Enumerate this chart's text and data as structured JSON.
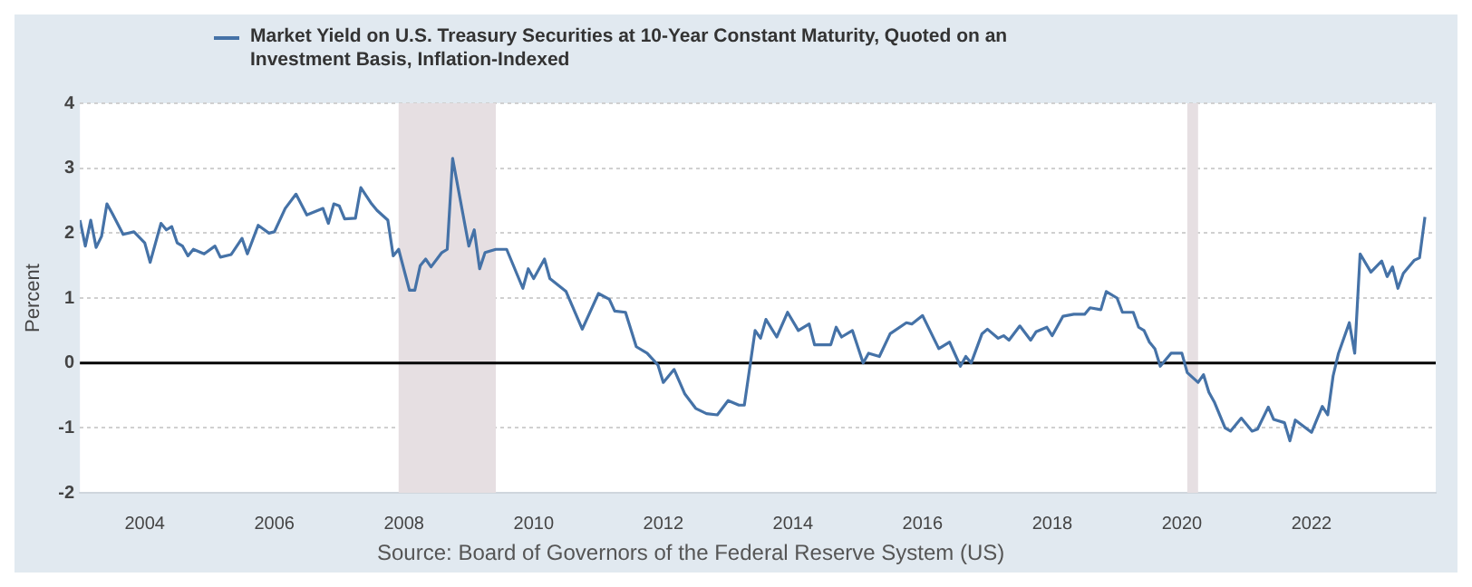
{
  "chart_data": {
    "type": "line",
    "ylabel": "Percent",
    "series": [
      {
        "name": "Market Yield on U.S. Treasury Securities at 10-Year Constant Maturity, Quoted on an Investment Basis, Inflation-Indexed",
        "color": "#4572a7",
        "x": [
          "2003-01",
          "2003-02",
          "2003-03",
          "2003-04",
          "2003-05",
          "2003-06",
          "2003-07",
          "2003-09",
          "2003-11",
          "2004-01",
          "2004-02",
          "2004-04",
          "2004-05",
          "2004-06",
          "2004-07",
          "2004-08",
          "2004-09",
          "2004-10",
          "2004-12",
          "2005-02",
          "2005-03",
          "2005-05",
          "2005-07",
          "2005-08",
          "2005-10",
          "2005-12",
          "2006-01",
          "2006-03",
          "2006-05",
          "2006-07",
          "2006-10",
          "2006-11",
          "2006-12",
          "2007-01",
          "2007-02",
          "2007-04",
          "2007-05",
          "2007-07",
          "2007-08",
          "2007-10",
          "2007-11",
          "2007-12",
          "2008-02",
          "2008-03",
          "2008-04",
          "2008-05",
          "2008-06",
          "2008-08",
          "2008-09",
          "2008-10",
          "2009-01",
          "2009-02",
          "2009-03",
          "2009-04",
          "2009-06",
          "2009-08",
          "2009-11",
          "2009-12",
          "2010-01",
          "2010-03",
          "2010-04",
          "2010-07",
          "2010-10",
          "2011-01",
          "2011-03",
          "2011-04",
          "2011-06",
          "2011-08",
          "2011-10",
          "2011-12",
          "2012-01",
          "2012-03",
          "2012-05",
          "2012-07",
          "2012-09",
          "2012-11",
          "2013-01",
          "2013-03",
          "2013-04",
          "2013-06",
          "2013-07",
          "2013-08",
          "2013-10",
          "2013-12",
          "2014-02",
          "2014-04",
          "2014-05",
          "2014-08",
          "2014-09",
          "2014-10",
          "2014-12",
          "2015-02",
          "2015-03",
          "2015-05",
          "2015-07",
          "2015-10",
          "2015-11",
          "2016-01",
          "2016-04",
          "2016-06",
          "2016-08",
          "2016-09",
          "2016-10",
          "2016-12",
          "2017-01",
          "2017-03",
          "2017-04",
          "2017-05",
          "2017-07",
          "2017-09",
          "2017-10",
          "2017-12",
          "2018-01",
          "2018-03",
          "2018-05",
          "2018-07",
          "2018-08",
          "2018-10",
          "2018-11",
          "2019-01",
          "2019-02",
          "2019-04",
          "2019-05",
          "2019-06",
          "2019-07",
          "2019-08",
          "2019-09",
          "2019-11",
          "2020-01",
          "2020-02",
          "2020-04",
          "2020-05",
          "2020-06",
          "2020-07",
          "2020-09",
          "2020-10",
          "2020-12",
          "2021-02",
          "2021-03",
          "2021-05",
          "2021-06",
          "2021-08",
          "2021-09",
          "2021-10",
          "2022-01",
          "2022-03",
          "2022-04",
          "2022-05",
          "2022-06",
          "2022-08",
          "2022-09",
          "2022-10",
          "2022-12",
          "2023-02",
          "2023-03",
          "2023-04",
          "2023-05",
          "2023-06",
          "2023-08",
          "2023-09",
          "2023-10"
        ],
        "values": [
          2.2,
          1.8,
          2.2,
          1.78,
          1.95,
          2.45,
          2.3,
          1.98,
          2.02,
          1.85,
          1.55,
          2.15,
          2.05,
          2.1,
          1.85,
          1.8,
          1.65,
          1.75,
          1.68,
          1.8,
          1.63,
          1.67,
          1.92,
          1.68,
          2.12,
          2.0,
          2.02,
          2.38,
          2.6,
          2.28,
          2.38,
          2.15,
          2.45,
          2.42,
          2.22,
          2.23,
          2.7,
          2.45,
          2.35,
          2.2,
          1.65,
          1.75,
          1.12,
          1.12,
          1.5,
          1.6,
          1.48,
          1.7,
          1.75,
          3.15,
          1.8,
          2.05,
          1.45,
          1.7,
          1.75,
          1.75,
          1.15,
          1.45,
          1.3,
          1.6,
          1.3,
          1.1,
          0.52,
          1.07,
          0.98,
          0.8,
          0.78,
          0.25,
          0.15,
          -0.03,
          -0.3,
          -0.1,
          -0.48,
          -0.7,
          -0.78,
          -0.8,
          -0.58,
          -0.65,
          -0.65,
          0.5,
          0.38,
          0.67,
          0.4,
          0.78,
          0.5,
          0.6,
          0.28,
          0.28,
          0.55,
          0.4,
          0.5,
          0.0,
          0.15,
          0.1,
          0.45,
          0.62,
          0.6,
          0.73,
          0.22,
          0.32,
          -0.05,
          0.1,
          0.0,
          0.45,
          0.52,
          0.38,
          0.42,
          0.35,
          0.57,
          0.35,
          0.48,
          0.55,
          0.42,
          0.72,
          0.75,
          0.75,
          0.85,
          0.82,
          1.1,
          1.0,
          0.78,
          0.78,
          0.55,
          0.5,
          0.32,
          0.22,
          -0.05,
          0.15,
          0.15,
          -0.15,
          -0.3,
          -0.18,
          -0.45,
          -0.6,
          -1.0,
          -1.05,
          -0.85,
          -1.05,
          -1.02,
          -0.68,
          -0.87,
          -0.92,
          -1.2,
          -0.88,
          -1.07,
          -0.67,
          -0.8,
          -0.2,
          0.15,
          0.62,
          0.15,
          1.68,
          1.4,
          1.57,
          1.33,
          1.48,
          1.15,
          1.38,
          1.58,
          1.62,
          2.25
        ]
      }
    ],
    "xlim": [
      "2003-01",
      "2023-12"
    ],
    "xticks": [
      "2004",
      "2006",
      "2008",
      "2010",
      "2012",
      "2014",
      "2016",
      "2018",
      "2020",
      "2022"
    ],
    "ylim": [
      -2,
      4
    ],
    "yticks": [
      -2,
      -1,
      0,
      1,
      2,
      3,
      4
    ],
    "grid": "y",
    "legend": "top left",
    "marker": "none",
    "line_style": "solid",
    "ref_lines": [
      {
        "axis": "y",
        "value": 0,
        "color": "#000000"
      }
    ],
    "bands": [
      {
        "axis": "x",
        "from": "2007-12",
        "to": "2009-06",
        "color": "#e6dfe2"
      },
      {
        "axis": "x",
        "from": "2020-02",
        "to": "2020-04",
        "color": "#e6dfe2"
      }
    ],
    "annotations": [
      "Source: Board of Governors of the Federal Reserve System (US)"
    ]
  }
}
